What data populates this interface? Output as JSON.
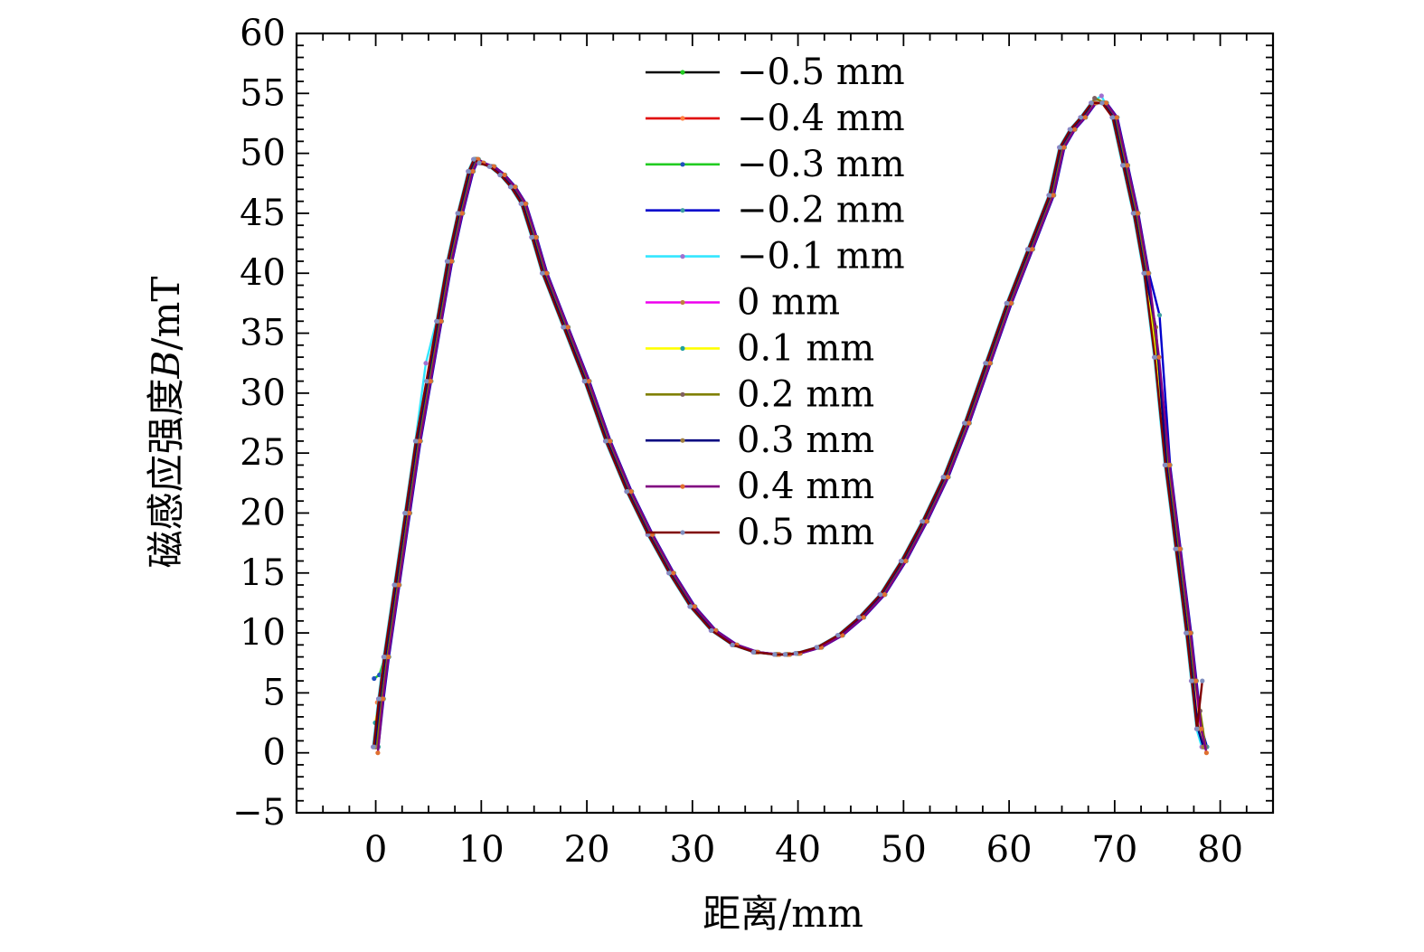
{
  "chart_data": {
    "type": "line",
    "xlabel": "距离/mm",
    "ylabel_prefix": "磁感应强度",
    "ylabel_var": "B",
    "ylabel_unit": "/mT",
    "xlim": [
      -7.5,
      85
    ],
    "ylim": [
      -5,
      60
    ],
    "x_ticks": [
      0,
      10,
      20,
      30,
      40,
      50,
      60,
      70,
      80
    ],
    "y_ticks": [
      -5,
      0,
      5,
      10,
      15,
      20,
      25,
      30,
      35,
      40,
      45,
      50,
      55,
      60
    ],
    "x_tick_labels": [
      "0",
      "10",
      "20",
      "30",
      "40",
      "50",
      "60",
      "70",
      "80"
    ],
    "y_tick_labels": [
      "−5",
      "0",
      "5",
      "10",
      "15",
      "20",
      "25",
      "30",
      "35",
      "40",
      "45",
      "50",
      "55",
      "60"
    ],
    "legend_position": "top-center",
    "x": [
      0,
      0.5,
      1,
      2,
      3,
      4,
      5,
      6,
      7,
      8,
      9,
      9.5,
      10,
      11,
      12,
      13,
      14,
      15,
      16,
      18,
      20,
      22,
      24,
      26,
      28,
      30,
      32,
      34,
      36,
      38,
      39,
      40,
      42,
      44,
      46,
      48,
      50,
      52,
      54,
      56,
      58,
      60,
      62,
      64,
      65,
      66,
      67,
      68,
      69,
      70,
      71,
      72,
      73,
      74,
      75,
      76,
      77,
      77.5,
      78,
      78.5
    ],
    "series": [
      {
        "name": "−0.5 mm",
        "color": "#000000",
        "dot": "#22cc22",
        "offset": 0.0,
        "values": [
          0.5,
          4.5,
          8,
          14,
          20,
          26,
          31,
          36,
          41,
          45,
          48.5,
          49.5,
          49.2,
          48.9,
          48.2,
          47.2,
          45.8,
          43,
          40,
          35.5,
          31,
          26,
          21.8,
          18.2,
          15,
          12.2,
          10.2,
          9,
          8.4,
          8.2,
          8.2,
          8.3,
          8.8,
          9.8,
          11.3,
          13.2,
          16,
          19.3,
          23,
          27.5,
          32.5,
          37.5,
          42,
          46.5,
          50.5,
          52,
          53,
          54.2,
          54.2,
          53,
          49,
          45,
          40,
          33,
          24,
          17,
          10,
          6,
          2,
          0.5
        ]
      },
      {
        "name": "−0.4 mm",
        "color": "#e00000",
        "dot": "#ff8040",
        "offset": 0.15,
        "values": [
          4.2,
          5.5,
          8,
          14,
          20,
          26,
          31,
          36,
          41,
          45,
          48.5,
          49.5,
          49.2,
          48.9,
          48.2,
          47.2,
          45.8,
          43,
          40,
          35.5,
          31,
          26,
          21.8,
          18.2,
          15,
          12.2,
          10.2,
          9,
          8.4,
          8.2,
          8.2,
          8.3,
          8.8,
          9.8,
          11.3,
          13.2,
          16,
          19.3,
          23,
          27.5,
          32.5,
          37.5,
          42,
          46.5,
          50.5,
          52,
          53,
          54.2,
          54.2,
          53,
          49,
          45,
          40,
          33,
          24,
          17,
          10,
          6,
          2,
          0.5
        ]
      },
      {
        "name": "−0.3 mm",
        "color": "#22cc22",
        "dot": "#2050c0",
        "offset": -0.15,
        "values": [
          6.2,
          6.5,
          8,
          14,
          20,
          26,
          31,
          36,
          41,
          45,
          48.5,
          49.5,
          49.2,
          48.9,
          48.2,
          47.2,
          45.8,
          43,
          40,
          35.5,
          31,
          26,
          21.8,
          18.2,
          15,
          12.2,
          10.2,
          9,
          8.4,
          8.2,
          8.2,
          8.3,
          8.8,
          9.8,
          11.3,
          13.2,
          16,
          19.3,
          23,
          27.5,
          32.5,
          37.5,
          42,
          46.5,
          50.5,
          52,
          53,
          54.2,
          54.2,
          53,
          49,
          45,
          40,
          33,
          24,
          17,
          10,
          6,
          2,
          0.5
        ]
      },
      {
        "name": "−0.2 mm",
        "color": "#0000cc",
        "dot": "#40a0a0",
        "offset": 0.25,
        "values": [
          0.5,
          4.5,
          8,
          14,
          20,
          26,
          31,
          36,
          41,
          45,
          48.5,
          49.5,
          49.2,
          48.9,
          48.2,
          47.2,
          45.8,
          43,
          40,
          35.5,
          31,
          26,
          21.8,
          18.2,
          15,
          12.2,
          10.2,
          9,
          8.4,
          8.2,
          8.2,
          8.3,
          8.8,
          9.8,
          11.3,
          13.2,
          16,
          19.3,
          23,
          27.5,
          32.5,
          37.5,
          42,
          46.5,
          50.5,
          52,
          53,
          54.2,
          54.2,
          53,
          49,
          45,
          40,
          36.5,
          24,
          17,
          10,
          6,
          2,
          0.5
        ]
      },
      {
        "name": "−0.1 mm",
        "color": "#33e6ff",
        "dot": "#a070d0",
        "offset": -0.25,
        "values": [
          0.5,
          4.5,
          8,
          14,
          20,
          26,
          32.5,
          36,
          41,
          45,
          48.5,
          49.5,
          49.2,
          48.9,
          48.2,
          47.2,
          45.8,
          43,
          40,
          35.5,
          31,
          26,
          21.8,
          18.2,
          15,
          12.2,
          10.2,
          9,
          8.4,
          8.2,
          8.2,
          8.3,
          8.8,
          9.8,
          11.3,
          13.2,
          16,
          19.3,
          23,
          27.5,
          32.5,
          37.5,
          42,
          46.5,
          50.5,
          52,
          53,
          54.2,
          54.8,
          53,
          49,
          45,
          40,
          33,
          24,
          17,
          10,
          6,
          2,
          0.5
        ]
      },
      {
        "name": "0 mm",
        "color": "#ee00ee",
        "dot": "#c08040",
        "offset": 0.05,
        "values": [
          0.5,
          4.5,
          8,
          14,
          20,
          26,
          31,
          36,
          41,
          45,
          48.5,
          49.5,
          49.2,
          48.9,
          48.2,
          47.2,
          45.8,
          43,
          40,
          35.5,
          31,
          26,
          21.8,
          18.2,
          15,
          12.2,
          10.2,
          9,
          8.4,
          8.2,
          8.2,
          8.3,
          8.8,
          9.8,
          11.3,
          13.2,
          16,
          19.3,
          23,
          27.5,
          32.5,
          37.5,
          42,
          46.5,
          50.5,
          52,
          53,
          54.2,
          54.2,
          53,
          49,
          45,
          40,
          33,
          24,
          17,
          10,
          6,
          2,
          0.5
        ]
      },
      {
        "name": "0.1 mm",
        "color": "#ffff00",
        "dot": "#20a0a0",
        "offset": -0.05,
        "values": [
          2.5,
          4.5,
          8,
          14,
          20,
          26,
          31,
          36,
          41,
          45,
          48.5,
          49.5,
          49.2,
          48.9,
          48.2,
          47.2,
          45.8,
          43,
          40,
          35.5,
          31,
          26,
          21.8,
          18.2,
          15,
          12.2,
          10.2,
          9,
          8.4,
          8.2,
          8.2,
          8.3,
          8.8,
          9.8,
          11.3,
          13.2,
          16,
          19.3,
          23,
          27.5,
          32.5,
          37.5,
          42,
          46.5,
          50.5,
          52,
          53,
          54.2,
          54.2,
          53,
          49,
          45,
          40,
          33,
          24,
          17,
          10,
          6,
          2,
          0.5
        ]
      },
      {
        "name": "0.2 mm",
        "color": "#808000",
        "dot": "#806060",
        "offset": 0.1,
        "values": [
          0.5,
          4.5,
          8,
          14,
          20,
          26,
          31,
          36,
          41,
          45,
          48.5,
          49.5,
          49.2,
          48.9,
          48.2,
          47.2,
          45.8,
          43,
          40,
          35.5,
          31,
          26,
          21.8,
          18.2,
          15,
          12.2,
          10.2,
          9,
          8.4,
          8.2,
          8.2,
          8.3,
          8.8,
          9.8,
          11.3,
          13.2,
          16,
          19.3,
          23,
          27.5,
          32.5,
          37.5,
          42,
          46.5,
          50.5,
          52,
          53,
          54.6,
          54.2,
          53,
          49,
          45,
          40,
          33,
          24,
          17,
          10,
          6,
          3.5,
          0.5
        ]
      },
      {
        "name": "0.3 mm",
        "color": "#000080",
        "dot": "#a08040",
        "offset": -0.1,
        "values": [
          0.5,
          4.5,
          8,
          14,
          20,
          26,
          31,
          36,
          41,
          45,
          48.5,
          49.5,
          49.2,
          48.9,
          48.2,
          47.2,
          45.8,
          43,
          40,
          35.5,
          31,
          26,
          21.8,
          18.2,
          15,
          12.2,
          10.2,
          9,
          8.4,
          8.2,
          8.2,
          8.3,
          8.8,
          9.8,
          11.3,
          13.2,
          16,
          19.3,
          23,
          27.5,
          32.5,
          37.5,
          42,
          46.5,
          50.5,
          52,
          53,
          54.2,
          54.2,
          53,
          49,
          45,
          40,
          35.5,
          24,
          17,
          10,
          6,
          2,
          0.5
        ]
      },
      {
        "name": "0.4 mm",
        "color": "#800080",
        "dot": "#e07030",
        "offset": 0.2,
        "values": [
          0,
          4.5,
          8,
          14,
          20,
          26,
          31,
          36,
          41,
          45,
          48.5,
          49.5,
          49.2,
          48.9,
          48.2,
          47.2,
          45.8,
          43,
          40,
          35.5,
          31,
          26,
          21.8,
          18.2,
          15,
          12.2,
          10.2,
          9,
          8.4,
          8.2,
          8.2,
          8.3,
          8.8,
          9.8,
          11.3,
          13.2,
          16,
          19.3,
          23,
          27.5,
          32.5,
          37.5,
          42,
          46.5,
          50.5,
          52,
          53,
          54.2,
          54.2,
          53,
          49,
          45,
          40,
          33,
          24,
          17,
          10,
          6,
          2,
          0
        ]
      },
      {
        "name": "0.5 mm",
        "color": "#800000",
        "dot": "#8090c0",
        "offset": -0.2,
        "values": [
          0.5,
          4.5,
          8,
          14,
          20,
          26,
          31,
          36,
          41,
          45,
          48.5,
          49.5,
          49.2,
          48.9,
          48.2,
          47.2,
          45.8,
          43,
          40,
          35.5,
          31,
          26,
          21.8,
          18.2,
          15,
          12.2,
          10.2,
          9,
          8.4,
          8.2,
          8.2,
          8.3,
          8.8,
          9.8,
          11.3,
          13.2,
          16,
          19.3,
          23,
          27.5,
          32.5,
          37.5,
          42,
          46.5,
          50.5,
          52,
          53,
          54.2,
          54.2,
          53,
          49,
          45,
          40,
          33,
          24,
          17,
          10,
          6,
          2,
          6
        ]
      }
    ]
  }
}
